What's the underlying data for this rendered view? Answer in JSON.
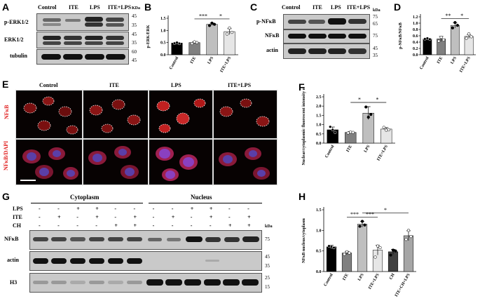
{
  "panels": {
    "A": {
      "letter": "A",
      "lanes": [
        "Control",
        "ITE",
        "LPS",
        "ITE+LPS"
      ],
      "kda_label": "KDa",
      "rows": [
        {
          "label": "p-ERK1/2",
          "markers": [
            "45",
            "35"
          ]
        },
        {
          "label": "ERK1/2",
          "markers": [
            "45",
            "35"
          ]
        },
        {
          "label": "tubulin",
          "markers": [
            "60",
            "45"
          ]
        }
      ]
    },
    "B": {
      "letter": "B"
    },
    "C": {
      "letter": "C",
      "lanes": [
        "Control",
        "ITE",
        "LPS",
        "ITE+LPS"
      ],
      "kda_label": "kDa",
      "rows": [
        {
          "label": "p-NFκB",
          "markers": [
            "75",
            "65"
          ]
        },
        {
          "label": "NFκB",
          "markers": [
            "75"
          ]
        },
        {
          "label": "actin",
          "markers": [
            "45",
            "35"
          ]
        }
      ]
    },
    "D": {
      "letter": "D"
    },
    "E": {
      "letter": "E",
      "columns": [
        "Control",
        "ITE",
        "LPS",
        "ITE+LPS"
      ],
      "row_labels": [
        "NFκB",
        "NFκB/DAPI"
      ]
    },
    "F": {
      "letter": "F"
    },
    "G": {
      "letter": "G",
      "fractions": [
        "Cytoplasm",
        "Nucleus"
      ],
      "treatments": [
        {
          "label": "LPS",
          "signs": [
            "-",
            "-",
            "+",
            "+",
            "-",
            "-",
            "-",
            "-",
            "+",
            "+",
            "-",
            "-"
          ]
        },
        {
          "label": "ITE",
          "signs": [
            "-",
            "+",
            "-",
            "+",
            "-",
            "+",
            "-",
            "+",
            "-",
            "+",
            "-",
            "+"
          ]
        },
        {
          "label": "CH",
          "signs": [
            "-",
            "-",
            "-",
            "-",
            "+",
            "+",
            "-",
            "-",
            "-",
            "-",
            "+",
            "+"
          ]
        }
      ],
      "kda_label": "kDa",
      "rows": [
        {
          "label": "NFκB",
          "markers": [
            "75"
          ]
        },
        {
          "label": "actin",
          "markers": [
            "45",
            "35"
          ]
        },
        {
          "label": "H3",
          "markers": [
            "25",
            "15"
          ]
        }
      ]
    },
    "H": {
      "letter": "H"
    }
  },
  "chart_data": [
    {
      "panel": "B",
      "type": "bar",
      "categories": [
        "Control",
        "ITE",
        "LPS",
        "ITE+LPS"
      ],
      "values": [
        0.48,
        0.5,
        1.25,
        0.95
      ],
      "errors": [
        0.03,
        0.04,
        0.05,
        0.12
      ],
      "points": [
        [
          0.47,
          0.5,
          0.46
        ],
        [
          0.46,
          0.53,
          0.5
        ],
        [
          1.2,
          1.3,
          1.25
        ],
        [
          0.85,
          1.1,
          0.92
        ]
      ],
      "colors": [
        "#000000",
        "#808080",
        "#bfbfbf",
        "#e6e6e6"
      ],
      "xlabel": "",
      "ylabel": "p-ERK/ERK",
      "ylim": [
        0,
        1.5
      ],
      "yticks": [
        "0.0",
        "0.5",
        "1.0",
        "1.5"
      ],
      "significance": [
        {
          "from": 1,
          "to": 2,
          "label": "***"
        },
        {
          "from": 2,
          "to": 3,
          "label": "*"
        }
      ],
      "grid": false
    },
    {
      "panel": "D",
      "type": "bar",
      "categories": [
        "Control",
        "ITE",
        "LPS",
        "ITE+LPS"
      ],
      "values": [
        0.5,
        0.5,
        0.93,
        0.58
      ],
      "errors": [
        0.02,
        0.08,
        0.08,
        0.06
      ],
      "points": [
        [
          0.5,
          0.52,
          0.49
        ],
        [
          0.43,
          0.55,
          0.47
        ],
        [
          0.85,
          1.02,
          0.93
        ],
        [
          0.52,
          0.66,
          0.57
        ]
      ],
      "colors": [
        "#000000",
        "#808080",
        "#bfbfbf",
        "#e6e6e6"
      ],
      "xlabel": "",
      "ylabel": "p-NFκB/NFκB",
      "ylim": [
        0,
        1.2
      ],
      "yticks": [
        "0.0",
        "0.2",
        "0.4",
        "0.6",
        "0.8",
        "1.0",
        "1.2"
      ],
      "significance": [
        {
          "from": 1,
          "to": 2,
          "label": "**"
        },
        {
          "from": 2,
          "to": 3,
          "label": "*"
        }
      ],
      "grid": false
    },
    {
      "panel": "F",
      "type": "bar",
      "categories": [
        "Control",
        "ITE",
        "LPS",
        "ITE+LPS"
      ],
      "values": [
        0.72,
        0.58,
        1.62,
        0.76
      ],
      "errors": [
        0.15,
        0.05,
        0.35,
        0.08
      ],
      "points": [
        [
          0.88,
          0.72,
          0.58
        ],
        [
          0.55,
          0.6,
          0.58
        ],
        [
          1.95,
          1.4,
          1.55
        ],
        [
          0.85,
          0.7,
          0.72
        ]
      ],
      "colors": [
        "#000000",
        "#808080",
        "#bfbfbf",
        "#e6e6e6"
      ],
      "xlabel": "",
      "ylabel": "Nuclear/cytoplasmic fluorescent intensity of NFκB",
      "ylim": [
        0,
        2.5
      ],
      "yticks": [
        "0.0",
        "0.5",
        "1.0",
        "1.5",
        "2.0",
        "2.5"
      ],
      "significance": [
        {
          "from": 1,
          "to": 2,
          "label": "*"
        },
        {
          "from": 2,
          "to": 3,
          "label": "*"
        }
      ],
      "grid": false
    },
    {
      "panel": "H",
      "type": "bar",
      "categories": [
        "Control",
        "ITE",
        "LPS",
        "ITE+LPS",
        "CH",
        "ITE+CH+LPS"
      ],
      "values": [
        0.6,
        0.45,
        1.15,
        0.52,
        0.48,
        0.87
      ],
      "errors": [
        0.04,
        0.04,
        0.07,
        0.12,
        0.06,
        0.12
      ],
      "points": [
        [
          0.62,
          0.6,
          0.58
        ],
        [
          0.42,
          0.48,
          0.45
        ],
        [
          1.1,
          1.22,
          1.13
        ],
        [
          0.35,
          0.62,
          0.58
        ],
        [
          0.4,
          0.52,
          0.5
        ],
        [
          0.78,
          1.0,
          0.85
        ]
      ],
      "colors": [
        "#000000",
        "#808080",
        "#bfbfbf",
        "#e6e6e6",
        "#404040",
        "#a6a6a6"
      ],
      "xlabel": "",
      "ylabel": "NFκB nucleus/cytoplasm",
      "ylim": [
        0,
        1.5
      ],
      "yticks": [
        "0.0",
        "0.5",
        "1.0",
        "1.5"
      ],
      "significance": [
        {
          "from": 1,
          "to": 2,
          "label": "***"
        },
        {
          "from": 2,
          "to": 3,
          "label": "***"
        },
        {
          "from": 2,
          "to": 5,
          "label": "*"
        }
      ],
      "grid": false
    }
  ]
}
